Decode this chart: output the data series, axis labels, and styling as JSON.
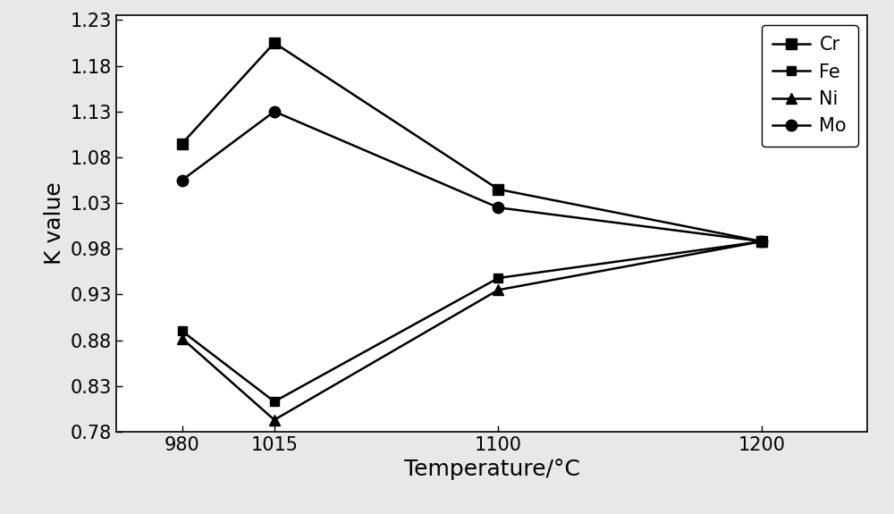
{
  "temperatures": [
    980,
    1015,
    1100,
    1200
  ],
  "series": {
    "Cr": {
      "values": [
        1.095,
        1.205,
        1.045,
        0.988
      ],
      "marker": "s",
      "color": "#000000",
      "markersize": 9,
      "linewidth": 1.8
    },
    "Fe": {
      "values": [
        0.89,
        0.813,
        0.948,
        0.988
      ],
      "marker": "s",
      "color": "#000000",
      "markersize": 7,
      "linewidth": 1.8
    },
    "Ni": {
      "values": [
        0.882,
        0.793,
        0.935,
        0.988
      ],
      "marker": "^",
      "color": "#000000",
      "markersize": 9,
      "linewidth": 1.8
    },
    "Mo": {
      "values": [
        1.055,
        1.13,
        1.025,
        0.988
      ],
      "marker": "o",
      "color": "#000000",
      "markersize": 9,
      "linewidth": 1.8
    }
  },
  "xlabel": "Temperature/°C",
  "ylabel": "K value",
  "ylim": [
    0.78,
    1.235
  ],
  "yticks": [
    0.78,
    0.83,
    0.88,
    0.93,
    0.98,
    1.03,
    1.08,
    1.13,
    1.18,
    1.23
  ],
  "xticks": [
    980,
    1015,
    1100,
    1200
  ],
  "figure_bg": "#e8e8e8",
  "axes_bg": "#ffffff",
  "legend_order": [
    "Cr",
    "Fe",
    "Ni",
    "Mo"
  ],
  "axis_fontsize": 18,
  "tick_fontsize": 15,
  "legend_fontsize": 15
}
